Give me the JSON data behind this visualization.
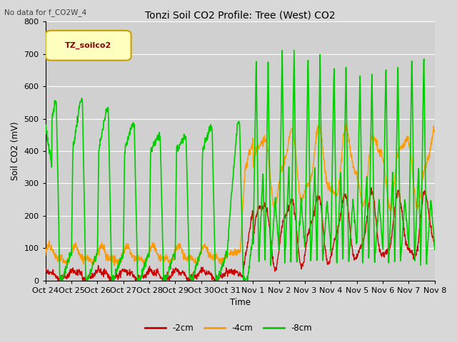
{
  "title": "Tonzi Soil CO2 Profile: Tree (West) CO2",
  "subtitle": "No data for f_CO2W_4",
  "ylabel": "Soil CO2 (mV)",
  "xlabel": "Time",
  "legend_label": "TZ_soilco2",
  "ylim": [
    0,
    800
  ],
  "line_colors": {
    "-2cm": "#cc0000",
    "-4cm": "#ff9900",
    "-8cm": "#00cc00"
  },
  "tick_labels": [
    "Oct 24",
    "Oct 25",
    "Oct 26",
    "Oct 27",
    "Oct 28",
    "Oct 29",
    "Oct 30",
    "Oct 31",
    "Nov 1",
    "Nov 2",
    "Nov 3",
    "Nov 4",
    "Nov 5",
    "Nov 6",
    "Nov 7",
    "Nov 8"
  ],
  "background_color": "#d8d8d8",
  "plot_bg_color": "#d0d0d0",
  "grid_color": "#ffffff",
  "legend_box_facecolor": "#ffffc0",
  "legend_box_edgecolor": "#c8a000",
  "legend_text_color": "#8b0000",
  "subtitle_color": "#404040"
}
